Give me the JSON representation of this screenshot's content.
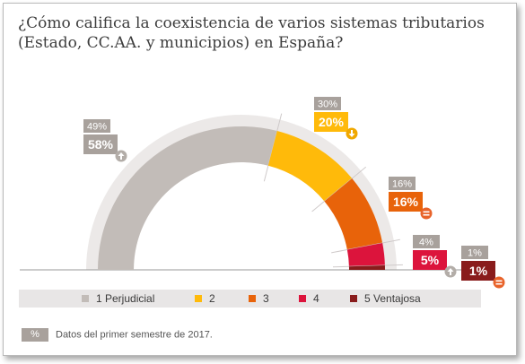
{
  "title": "¿Cómo califica la coexistencia de varios sistemas tributarios (Estado, CC.AA. y municipios) en España?",
  "colors": {
    "track": "#ece9e8",
    "prior_box": "#a8a19c",
    "trend_up": "#b3ada8",
    "equal": "#e8632a",
    "down": "#f0a800"
  },
  "chart_data": {
    "type": "half-donut",
    "unit": "%",
    "categories": [
      "1 Perjudicial",
      "2",
      "3",
      "4",
      "5 Ventajosa"
    ],
    "series": [
      {
        "period": "current",
        "values": [
          58,
          20,
          16,
          5,
          1
        ]
      },
      {
        "period": "previous",
        "values": [
          49,
          30,
          16,
          4,
          1
        ]
      }
    ],
    "segment_colors": [
      "#c2bcb8",
      "#ffba0a",
      "#e8630a",
      "#dc143c",
      "#891c1c"
    ],
    "labels": [
      {
        "previous": "49%",
        "current": "58%",
        "trend": "up-icon"
      },
      {
        "previous": "30%",
        "current": "20%",
        "trend": "down-icon"
      },
      {
        "previous": "16%",
        "current": "16%",
        "trend": "equal-icon"
      },
      {
        "previous": "4%",
        "current": "5%",
        "trend": "up-icon"
      },
      {
        "previous": "1%",
        "current": "1%",
        "trend": "equal-icon"
      }
    ]
  },
  "legend": [
    {
      "label": "1 Perjudicial",
      "color": "#c2bcb8"
    },
    {
      "label": "2",
      "color": "#ffba0a"
    },
    {
      "label": "3",
      "color": "#e8630a"
    },
    {
      "label": "4",
      "color": "#dc143c"
    },
    {
      "label": "5 Ventajosa",
      "color": "#891c1c"
    }
  ],
  "note": {
    "box_label": "%",
    "text": "Datos del primer semestre de 2017."
  }
}
